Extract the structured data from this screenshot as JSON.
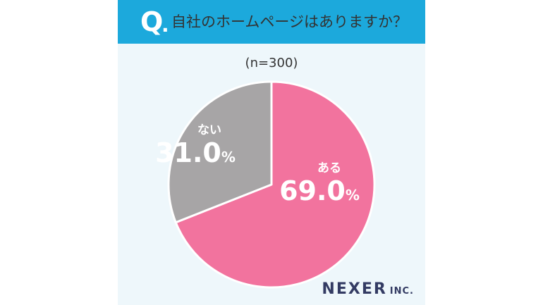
{
  "header": {
    "q_letter": "Q",
    "q_dot": ".",
    "question": "自社のホームページはありますか？"
  },
  "sample_size": "(n=300)",
  "chart_data": {
    "type": "pie",
    "categories": [
      "ある",
      "ない"
    ],
    "values": [
      69.0,
      31.0
    ],
    "value_suffix": "%",
    "colors": [
      "#f2739e",
      "#a7a5a6"
    ],
    "label_color": "#ffffff",
    "background": "#eef7fb"
  },
  "logo": {
    "main": "NEXER",
    "sub": "INC."
  }
}
